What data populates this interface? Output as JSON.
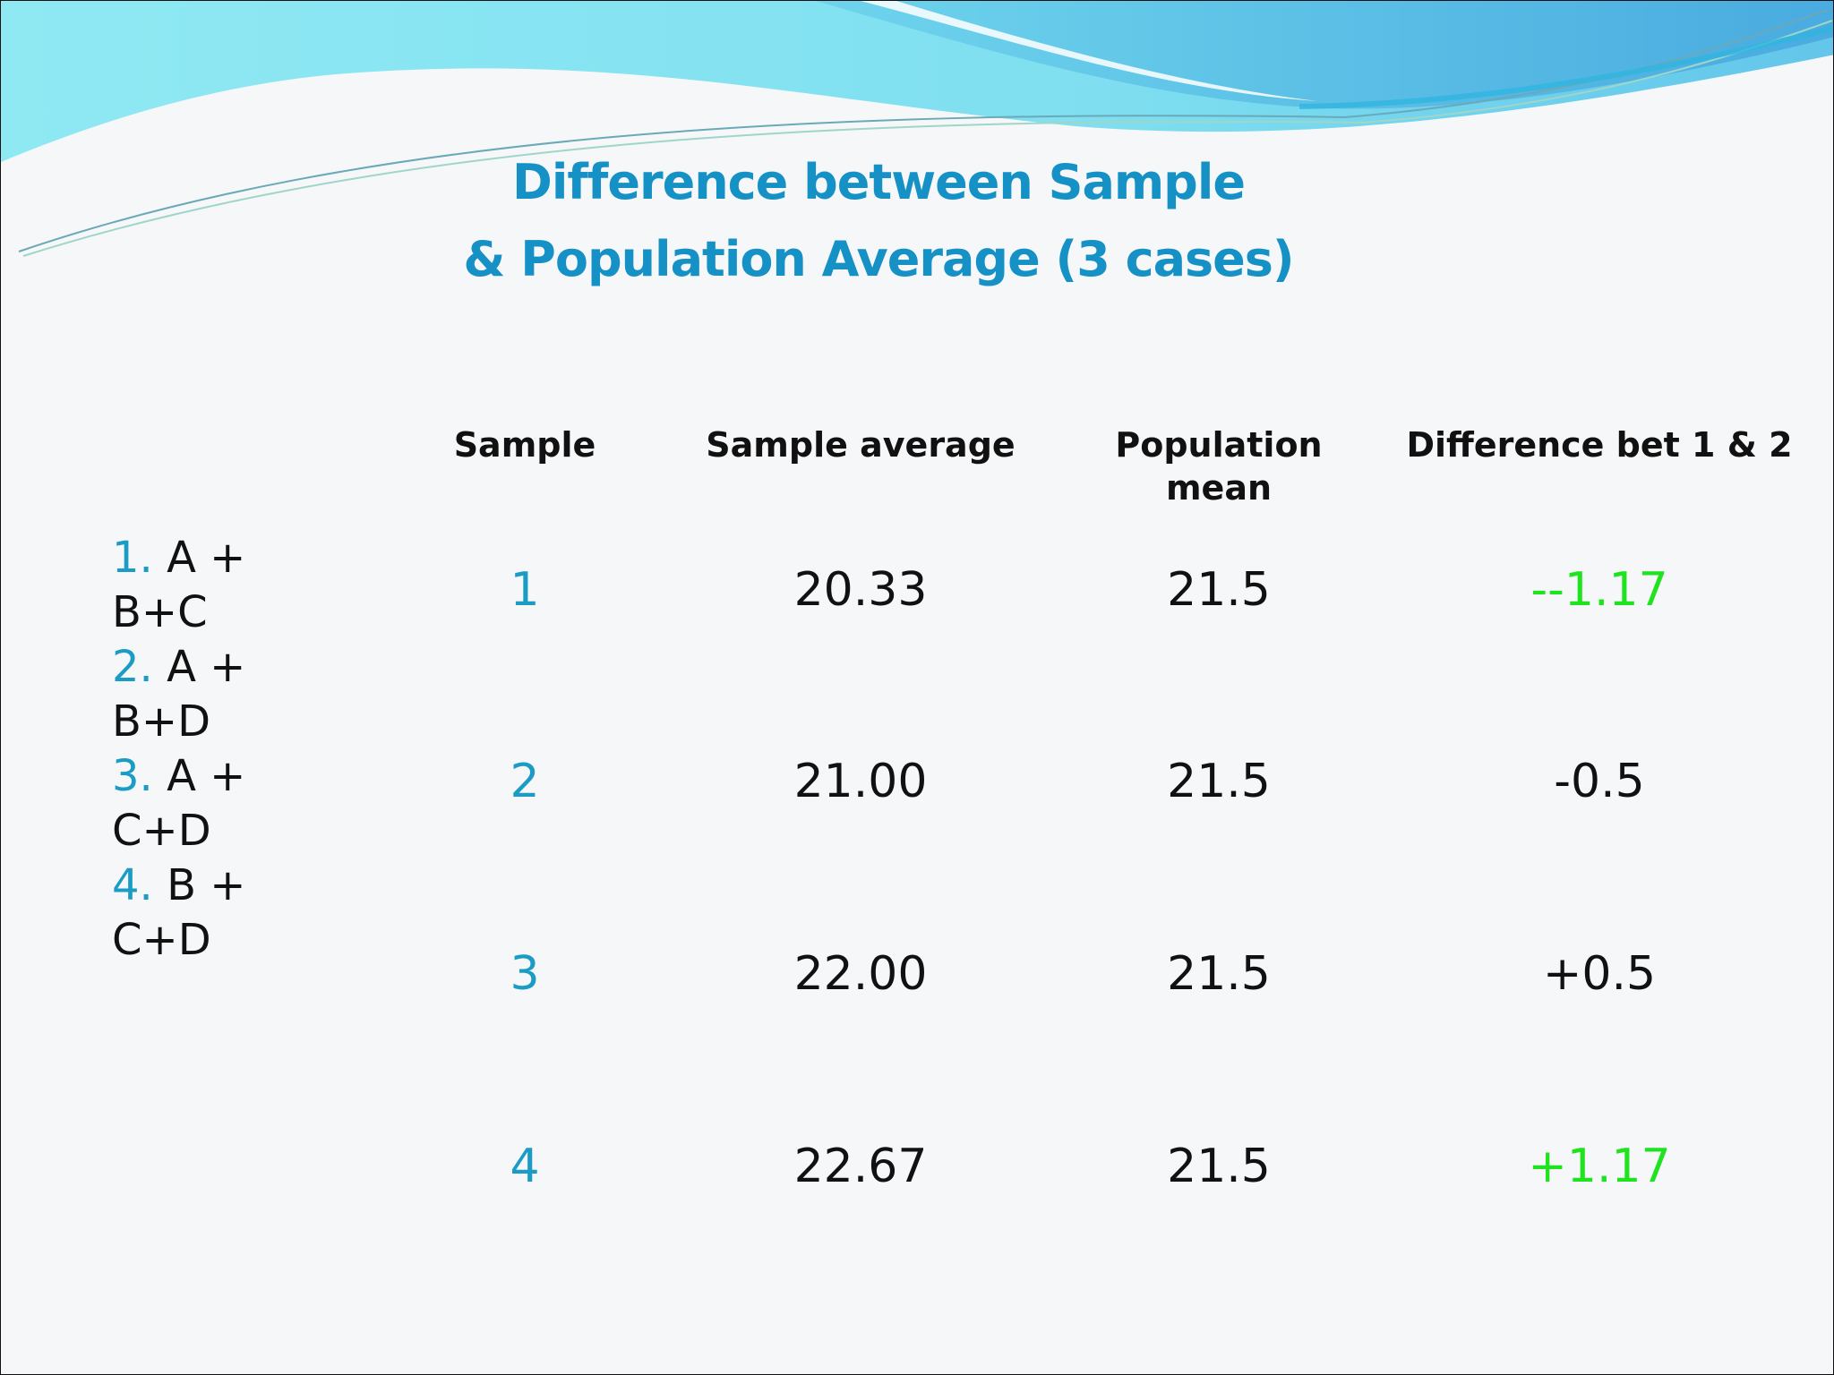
{
  "title": {
    "line1": "Difference between Sample",
    "line2": "& Population Average (3 cases)"
  },
  "samples_list": [
    {
      "num": "1.",
      "text": "A + B+C"
    },
    {
      "num": "2.",
      "text": "A + B+D"
    },
    {
      "num": "3.",
      "text": "A + C+D"
    },
    {
      "num": "4.",
      "text": "B + C+D"
    }
  ],
  "table": {
    "headers": {
      "sample": "Sample",
      "sample_average": "Sample average",
      "population_mean": "Population mean",
      "difference": "Difference bet 1 & 2"
    },
    "rows": [
      {
        "sample": "1",
        "sample_average": "20.33",
        "population_mean": "21.5",
        "difference": "--1.17"
      },
      {
        "sample": "2",
        "sample_average": "21.00",
        "population_mean": "21.5",
        "difference": "-0.5"
      },
      {
        "sample": "3",
        "sample_average": "22.00",
        "population_mean": "21.5",
        "difference": "+0.5"
      },
      {
        "sample": "4",
        "sample_average": "22.67",
        "population_mean": "21.5",
        "difference": "+1.17"
      }
    ]
  },
  "colors": {
    "title": "#1591c6",
    "accent_number": "#1a9cc4",
    "highlight_green": "#1ee31e",
    "wave_light": "#8be8f2",
    "wave_dark": "#5cc0e6"
  }
}
